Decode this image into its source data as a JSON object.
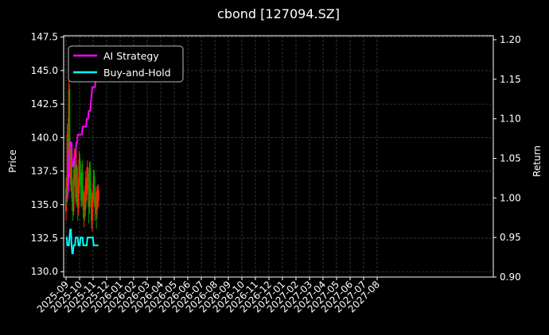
{
  "chart_data": {
    "type": "line",
    "title": "cbond [127094.SZ]",
    "ylabel_left": "Price",
    "ylabel_right": "Return",
    "grid": true,
    "legend_position": "top-left",
    "colors": {
      "background": "#000000",
      "ai_strategy": "#ff00ff",
      "buy_and_hold": "#00ffff",
      "candle_up": "#ff2a00",
      "candle_down": "#00a000",
      "grid": "#555555"
    },
    "x_tick_labels": [
      "2025-09",
      "2025-10",
      "2025-11",
      "2025-12",
      "2026-01",
      "2026-02",
      "2026-03",
      "2026-04",
      "2026-05",
      "2026-06",
      "2026-07",
      "2026-08",
      "2026-09",
      "2026-10",
      "2026-11",
      "2026-12",
      "2027-01",
      "2027-02",
      "2027-03",
      "2027-04",
      "2027-05",
      "2027-06",
      "2027-07",
      "2027-08"
    ],
    "y_left": {
      "ylim": [
        129.6,
        147.6
      ],
      "ticks": [
        "130.0",
        "132.5",
        "135.0",
        "137.5",
        "140.0",
        "142.5",
        "145.0",
        "147.5"
      ]
    },
    "y_right": {
      "ylim": [
        0.9,
        1.205
      ],
      "ticks": [
        "0.90",
        "0.95",
        "1.00",
        "1.05",
        "1.10",
        "1.15",
        "1.20"
      ]
    },
    "series": [
      {
        "name": "AI Strategy",
        "axis": "right",
        "points": [
          [
            0,
            1.0
          ],
          [
            1,
            1.0
          ],
          [
            2,
            1.0
          ],
          [
            3,
            1.01
          ],
          [
            4,
            1.05
          ],
          [
            5,
            1.06
          ],
          [
            6,
            1.07
          ],
          [
            7,
            1.07
          ],
          [
            8,
            1.07
          ],
          [
            9,
            1.04
          ],
          [
            10,
            1.04
          ],
          [
            11,
            1.04
          ],
          [
            12,
            1.05
          ],
          [
            13,
            1.05
          ],
          [
            14,
            1.06
          ],
          [
            15,
            1.07
          ],
          [
            16,
            1.07
          ],
          [
            17,
            1.08
          ],
          [
            18,
            1.08
          ],
          [
            19,
            1.08
          ],
          [
            20,
            1.08
          ],
          [
            21,
            1.08
          ],
          [
            22,
            1.08
          ],
          [
            23,
            1.08
          ],
          [
            24,
            1.09
          ],
          [
            25,
            1.09
          ],
          [
            26,
            1.09
          ],
          [
            27,
            1.09
          ],
          [
            28,
            1.09
          ],
          [
            29,
            1.09
          ],
          [
            30,
            1.1
          ],
          [
            31,
            1.1
          ],
          [
            32,
            1.1
          ],
          [
            33,
            1.11
          ],
          [
            34,
            1.11
          ],
          [
            35,
            1.11
          ],
          [
            36,
            1.12
          ],
          [
            37,
            1.13
          ],
          [
            38,
            1.14
          ],
          [
            39,
            1.14
          ],
          [
            40,
            1.14
          ],
          [
            41,
            1.14
          ],
          [
            42,
            1.14
          ],
          [
            43,
            1.15
          ],
          [
            44,
            1.16
          ],
          [
            45,
            1.16
          ],
          [
            46,
            1.17
          ],
          [
            47,
            1.18
          ]
        ]
      },
      {
        "name": "Buy-and-Hold",
        "axis": "right",
        "points": [
          [
            0,
            0.95
          ],
          [
            1,
            0.95
          ],
          [
            2,
            0.94
          ],
          [
            3,
            0.94
          ],
          [
            4,
            0.94
          ],
          [
            5,
            0.95
          ],
          [
            6,
            0.96
          ],
          [
            7,
            0.96
          ],
          [
            8,
            0.94
          ],
          [
            9,
            0.93
          ],
          [
            10,
            0.93
          ],
          [
            11,
            0.94
          ],
          [
            12,
            0.94
          ],
          [
            13,
            0.94
          ],
          [
            14,
            0.95
          ],
          [
            15,
            0.95
          ],
          [
            16,
            0.95
          ],
          [
            17,
            0.95
          ],
          [
            18,
            0.94
          ],
          [
            19,
            0.94
          ],
          [
            20,
            0.94
          ],
          [
            21,
            0.95
          ],
          [
            22,
            0.95
          ],
          [
            23,
            0.95
          ],
          [
            24,
            0.95
          ],
          [
            25,
            0.94
          ],
          [
            26,
            0.94
          ],
          [
            27,
            0.94
          ],
          [
            28,
            0.94
          ],
          [
            29,
            0.94
          ],
          [
            30,
            0.94
          ],
          [
            31,
            0.95
          ],
          [
            32,
            0.95
          ],
          [
            33,
            0.95
          ],
          [
            34,
            0.95
          ],
          [
            35,
            0.95
          ],
          [
            36,
            0.95
          ],
          [
            37,
            0.95
          ],
          [
            38,
            0.95
          ],
          [
            39,
            0.95
          ],
          [
            40,
            0.94
          ],
          [
            41,
            0.94
          ],
          [
            42,
            0.94
          ],
          [
            43,
            0.94
          ],
          [
            44,
            0.94
          ],
          [
            45,
            0.94
          ],
          [
            46,
            0.94
          ],
          [
            47,
            0.94
          ]
        ]
      }
    ],
    "candles_price": [
      [
        0,
        134.5,
        136.2,
        133.8,
        137.0
      ],
      [
        1,
        136.2,
        135.8,
        135.0,
        137.2
      ],
      [
        2,
        135.8,
        140.3,
        135.2,
        141.0
      ],
      [
        3,
        140.3,
        137.0,
        136.5,
        141.5
      ],
      [
        4,
        137.0,
        143.6,
        136.8,
        145.0
      ],
      [
        5,
        143.6,
        139.2,
        138.5,
        144.0
      ],
      [
        6,
        139.2,
        137.0,
        136.5,
        140.0
      ],
      [
        7,
        137.0,
        138.5,
        136.0,
        139.0
      ],
      [
        8,
        138.5,
        136.0,
        135.5,
        139.0
      ],
      [
        9,
        136.0,
        135.2,
        134.5,
        136.8
      ],
      [
        10,
        135.2,
        134.5,
        133.8,
        136.0
      ],
      [
        11,
        134.5,
        137.0,
        134.2,
        137.6
      ],
      [
        12,
        137.0,
        138.3,
        136.6,
        139.2
      ],
      [
        13,
        138.3,
        137.5,
        136.4,
        138.8
      ],
      [
        14,
        137.5,
        135.5,
        135.0,
        138.0
      ],
      [
        15,
        135.5,
        137.8,
        135.2,
        139.0
      ],
      [
        16,
        137.8,
        135.3,
        134.8,
        138.0
      ],
      [
        17,
        135.3,
        134.8,
        133.8,
        135.8
      ],
      [
        18,
        134.8,
        136.4,
        134.2,
        137.0
      ],
      [
        19,
        136.4,
        138.4,
        135.8,
        139.0
      ],
      [
        20,
        138.4,
        137.4,
        136.8,
        138.8
      ],
      [
        21,
        137.4,
        136.4,
        135.8,
        138.2
      ],
      [
        22,
        136.4,
        135.3,
        134.8,
        137.0
      ],
      [
        23,
        135.3,
        137.4,
        134.9,
        138.0
      ],
      [
        24,
        137.4,
        135.7,
        135.4,
        138.3
      ],
      [
        25,
        135.7,
        134.6,
        134.0,
        136.2
      ],
      [
        26,
        134.6,
        135.1,
        133.3,
        136.0
      ],
      [
        27,
        135.1,
        134.6,
        133.8,
        135.5
      ],
      [
        28,
        134.6,
        136.4,
        134.1,
        137.5
      ],
      [
        29,
        136.4,
        135.8,
        134.8,
        137.0
      ],
      [
        30,
        135.8,
        137.0,
        135.3,
        137.8
      ],
      [
        31,
        137.0,
        137.3,
        136.2,
        138.3
      ],
      [
        32,
        137.3,
        136.2,
        135.0,
        137.8
      ],
      [
        33,
        136.2,
        134.8,
        133.6,
        136.8
      ],
      [
        34,
        134.8,
        137.7,
        134.3,
        138.2
      ],
      [
        35,
        137.7,
        136.2,
        135.6,
        138.2
      ],
      [
        36,
        136.2,
        135.4,
        134.8,
        136.8
      ],
      [
        37,
        135.4,
        133.8,
        133.2,
        135.9
      ],
      [
        38,
        133.8,
        135.2,
        133.0,
        135.8
      ],
      [
        39,
        135.2,
        136.0,
        134.4,
        136.6
      ],
      [
        40,
        136.0,
        137.1,
        135.7,
        137.6
      ],
      [
        41,
        137.1,
        135.4,
        134.9,
        137.6
      ],
      [
        42,
        135.4,
        134.8,
        133.8,
        135.9
      ],
      [
        43,
        134.8,
        135.6,
        134.3,
        136.3
      ],
      [
        44,
        135.6,
        134.6,
        133.2,
        135.9
      ],
      [
        45,
        134.6,
        136.0,
        133.9,
        136.4
      ],
      [
        46,
        136.0,
        135.3,
        134.9,
        136.5
      ],
      [
        47,
        135.3,
        136.1,
        134.8,
        136.5
      ]
    ],
    "legend": [
      {
        "label": "AI Strategy",
        "color": "#ff00ff"
      },
      {
        "label": "Buy-and-Hold",
        "color": "#00ffff"
      }
    ]
  }
}
